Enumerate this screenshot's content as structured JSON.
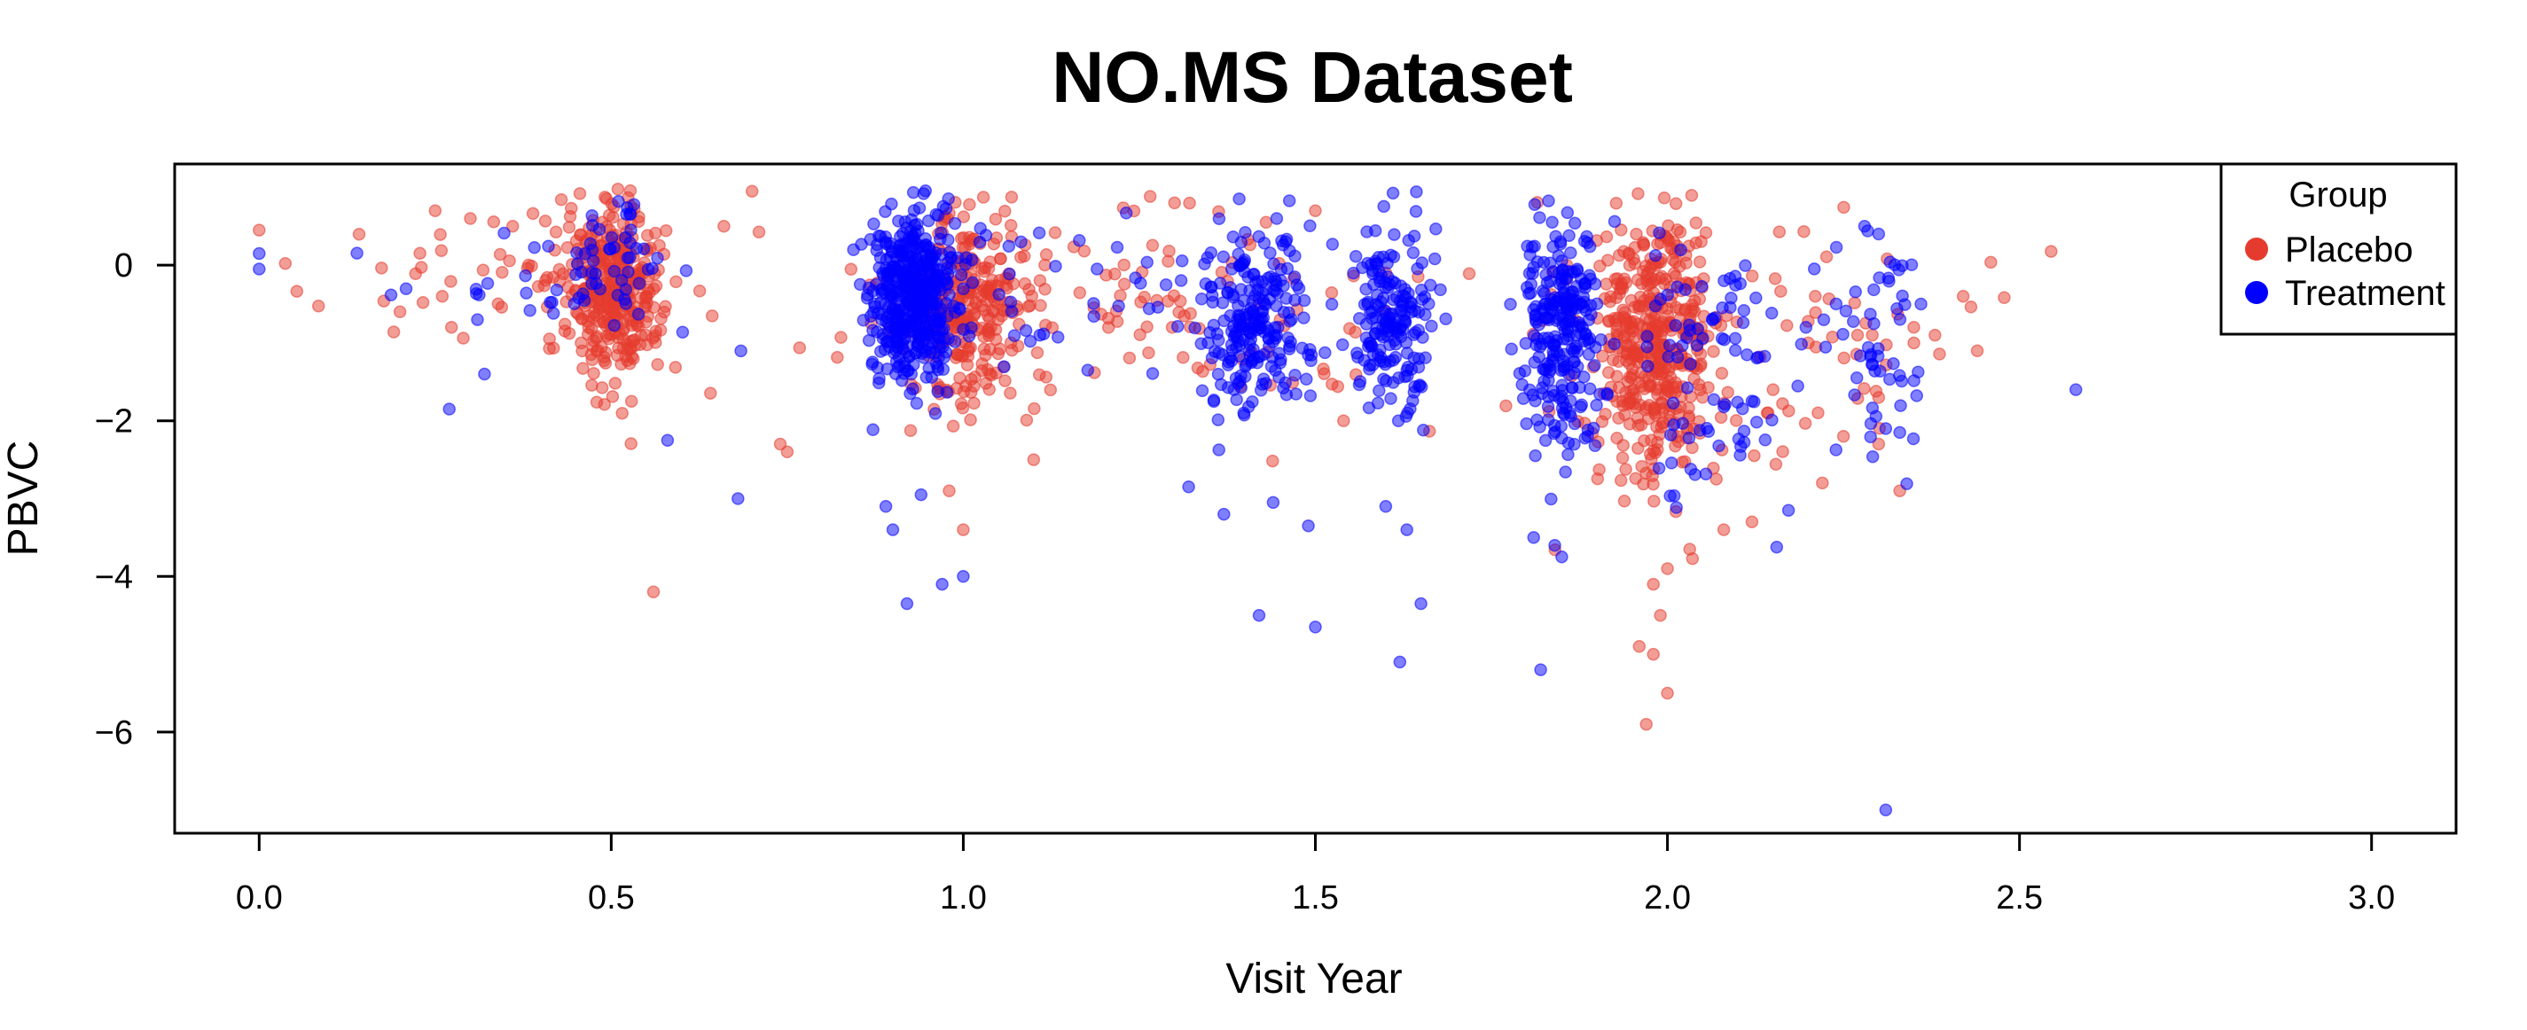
{
  "chart_data": {
    "type": "scatter",
    "title": "NO.MS Dataset",
    "xlabel": "Visit Year",
    "ylabel": "PBVC",
    "xlim": [
      -0.12,
      3.12
    ],
    "ylim": [
      -7.3,
      1.3
    ],
    "xticks": [
      0.0,
      0.5,
      1.0,
      1.5,
      2.0,
      2.5,
      3.0
    ],
    "xtick_labels": [
      "0.0",
      "0.5",
      "1.0",
      "1.5",
      "2.0",
      "2.5",
      "3.0"
    ],
    "yticks": [
      -6,
      -4,
      -2,
      0
    ],
    "ytick_labels": [
      "−6",
      "−4",
      "−2",
      "0"
    ],
    "grid": false,
    "legend": {
      "title": "Group",
      "position": "top-right",
      "entries": [
        "Placebo",
        "Treatment"
      ]
    },
    "series": [
      {
        "name": "Placebo",
        "color": "#E53B2E",
        "clusters": [
          {
            "cx": 0.5,
            "sx": 0.03,
            "cy": -0.3,
            "sy": 0.55,
            "n": 340
          },
          {
            "cx": 1.0,
            "sx": 0.04,
            "cy": -0.6,
            "sy": 0.65,
            "n": 260
          },
          {
            "cx": 1.98,
            "sx": 0.04,
            "cy": -1.0,
            "sy": 0.8,
            "n": 430
          },
          {
            "cx": 0.4,
            "sx": 0.15,
            "cy": -0.3,
            "sy": 0.5,
            "n": 60
          },
          {
            "cx": 1.2,
            "sx": 0.15,
            "cy": -0.4,
            "sy": 0.6,
            "n": 80
          },
          {
            "cx": 1.6,
            "sx": 0.25,
            "cy": -0.9,
            "sy": 0.8,
            "n": 40
          },
          {
            "cx": 2.15,
            "sx": 0.15,
            "cy": -1.2,
            "sy": 0.9,
            "n": 70
          }
        ],
        "points": [
          [
            0.0,
            0.45
          ],
          [
            0.56,
            -4.2
          ],
          [
            0.75,
            -2.4
          ],
          [
            0.74,
            -2.3
          ],
          [
            1.0,
            -3.4
          ],
          [
            0.98,
            -2.9
          ],
          [
            1.1,
            -2.5
          ],
          [
            1.97,
            -5.9
          ],
          [
            2.0,
            -5.5
          ],
          [
            1.98,
            -5.0
          ],
          [
            1.96,
            -4.9
          ],
          [
            1.99,
            -4.5
          ],
          [
            1.98,
            -4.1
          ],
          [
            2.0,
            -3.9
          ],
          [
            2.44,
            -1.1
          ],
          [
            2.35,
            -1.0
          ],
          [
            2.38,
            -0.9
          ],
          [
            2.42,
            -0.4
          ],
          [
            2.3,
            -2.3
          ],
          [
            2.33,
            -2.9
          ],
          [
            2.25,
            -2.2
          ],
          [
            2.22,
            -2.8
          ],
          [
            2.2,
            -1.0
          ],
          [
            2.15,
            -1.6
          ],
          [
            2.27,
            -0.9
          ],
          [
            2.3,
            -1.7
          ],
          [
            2.21,
            -0.4
          ],
          [
            2.08,
            -3.4
          ],
          [
            2.12,
            -3.3
          ],
          [
            1.6,
            -0.1
          ],
          [
            1.54,
            -2.0
          ],
          [
            1.45,
            -0.7
          ],
          [
            1.3,
            0.8
          ],
          [
            1.5,
            0.7
          ],
          [
            1.43,
            0.55
          ],
          [
            0.25,
            0.7
          ],
          [
            0.3,
            0.6
          ],
          [
            0.2,
            -0.6
          ],
          [
            0.36,
            0.5
          ],
          [
            0.26,
            -0.4
          ],
          [
            0.7,
            0.95
          ],
          [
            0.66,
            0.5
          ]
        ]
      },
      {
        "name": "Treatment",
        "color": "#0000FF",
        "clusters": [
          {
            "cx": 0.93,
            "sx": 0.03,
            "cy": -0.4,
            "sy": 0.55,
            "n": 480
          },
          {
            "cx": 1.41,
            "sx": 0.04,
            "cy": -0.7,
            "sy": 0.6,
            "n": 220
          },
          {
            "cx": 1.61,
            "sx": 0.03,
            "cy": -0.8,
            "sy": 0.6,
            "n": 180
          },
          {
            "cx": 1.85,
            "sx": 0.03,
            "cy": -0.9,
            "sy": 0.7,
            "n": 260
          },
          {
            "cx": 0.5,
            "sx": 0.03,
            "cy": 0.1,
            "sy": 0.4,
            "n": 40
          },
          {
            "cx": 1.2,
            "sx": 0.12,
            "cy": -0.5,
            "sy": 0.6,
            "n": 50
          },
          {
            "cx": 2.08,
            "sx": 0.06,
            "cy": -1.2,
            "sy": 0.8,
            "n": 90
          },
          {
            "cx": 2.3,
            "sx": 0.04,
            "cy": -1.0,
            "sy": 0.8,
            "n": 50
          },
          {
            "cx": 0.4,
            "sx": 0.15,
            "cy": -0.3,
            "sy": 0.4,
            "n": 30
          }
        ],
        "points": [
          [
            0.0,
            0.15
          ],
          [
            0.0,
            -0.05
          ],
          [
            0.27,
            -1.85
          ],
          [
            0.58,
            -2.25
          ],
          [
            0.68,
            -3.0
          ],
          [
            0.32,
            -1.4
          ],
          [
            0.31,
            -0.7
          ],
          [
            0.92,
            -4.35
          ],
          [
            0.97,
            -4.1
          ],
          [
            1.0,
            -4.0
          ],
          [
            0.9,
            -3.4
          ],
          [
            0.89,
            -3.1
          ],
          [
            0.94,
            -2.95
          ],
          [
            1.37,
            -3.2
          ],
          [
            1.44,
            -3.05
          ],
          [
            1.42,
            -4.5
          ],
          [
            1.5,
            -4.65
          ],
          [
            1.49,
            -3.35
          ],
          [
            1.32,
            -2.85
          ],
          [
            1.62,
            -5.1
          ],
          [
            1.6,
            -3.1
          ],
          [
            1.65,
            -4.35
          ],
          [
            1.63,
            -3.4
          ],
          [
            1.82,
            -5.2
          ],
          [
            1.85,
            -3.75
          ],
          [
            1.84,
            -3.6
          ],
          [
            1.81,
            -3.5
          ],
          [
            2.31,
            -7.0
          ],
          [
            2.58,
            -1.6
          ],
          [
            2.36,
            -0.5
          ],
          [
            2.31,
            -2.1
          ],
          [
            2.33,
            -2.15
          ],
          [
            2.28,
            0.5
          ],
          [
            2.3,
            0.4
          ]
        ]
      }
    ]
  }
}
